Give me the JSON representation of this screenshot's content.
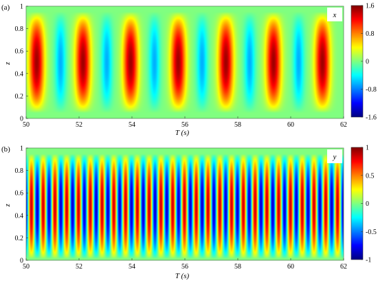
{
  "chart_data": [
    {
      "panel_label": "(a)",
      "type": "heatmap",
      "variable": "x",
      "xlabel": "T (s)",
      "ylabel": "z",
      "xlim": [
        50,
        62
      ],
      "ylim": [
        0,
        1
      ],
      "x_ticks": [
        50,
        52,
        54,
        56,
        58,
        60,
        62
      ],
      "x_tick_labels": [
        "50",
        "52",
        "54",
        "56",
        "58",
        "60",
        "62"
      ],
      "y_ticks": [
        0,
        0.2,
        0.4,
        0.6,
        0.8,
        1
      ],
      "y_tick_labels": [
        "0",
        "0.2",
        "0.4",
        "0.6",
        "0.8",
        "1"
      ],
      "field": {
        "positive_peaks_T": [
          50.4,
          52.15,
          53.95,
          55.75,
          57.55,
          59.35,
          61.2
        ],
        "negative_peaks_T": [
          51.3,
          53.05,
          54.85,
          56.65,
          58.45,
          60.3
        ],
        "peak_value": 1.5,
        "trough_value": -0.65,
        "z_center": 0.5,
        "z_range": [
          0.05,
          0.95
        ]
      },
      "colorbar": {
        "min": -1.6,
        "max": 1.6,
        "ticks": [
          1.6,
          0.8,
          0,
          -0.8,
          -1.6
        ],
        "tick_labels": [
          "1.6",
          "0.8",
          "0",
          "-0.8",
          "-1.6"
        ],
        "colormap": "jet"
      }
    },
    {
      "panel_label": "(b)",
      "type": "heatmap",
      "variable": "y",
      "xlabel": "T (s)",
      "ylabel": "z",
      "xlim": [
        50,
        62
      ],
      "ylim": [
        0,
        1
      ],
      "x_ticks": [
        50,
        52,
        54,
        56,
        58,
        60,
        62
      ],
      "x_tick_labels": [
        "50",
        "52",
        "54",
        "56",
        "58",
        "60",
        "62"
      ],
      "y_ticks": [
        0,
        0.2,
        0.4,
        0.6,
        0.8,
        1
      ],
      "y_tick_labels": [
        "0",
        "0.2",
        "0.4",
        "0.6",
        "0.8",
        "1"
      ],
      "field": {
        "period_s": 0.445,
        "phase_T": 50.2,
        "amplitude": 0.85,
        "z_center": 0.48,
        "z_range": [
          0.02,
          0.95
        ]
      },
      "colorbar": {
        "min": -1,
        "max": 1,
        "ticks": [
          1,
          0.5,
          0,
          -0.5,
          -1
        ],
        "tick_labels": [
          "1",
          "0.5",
          "0",
          "-0.5",
          "-1"
        ],
        "colormap": "jet"
      }
    }
  ]
}
